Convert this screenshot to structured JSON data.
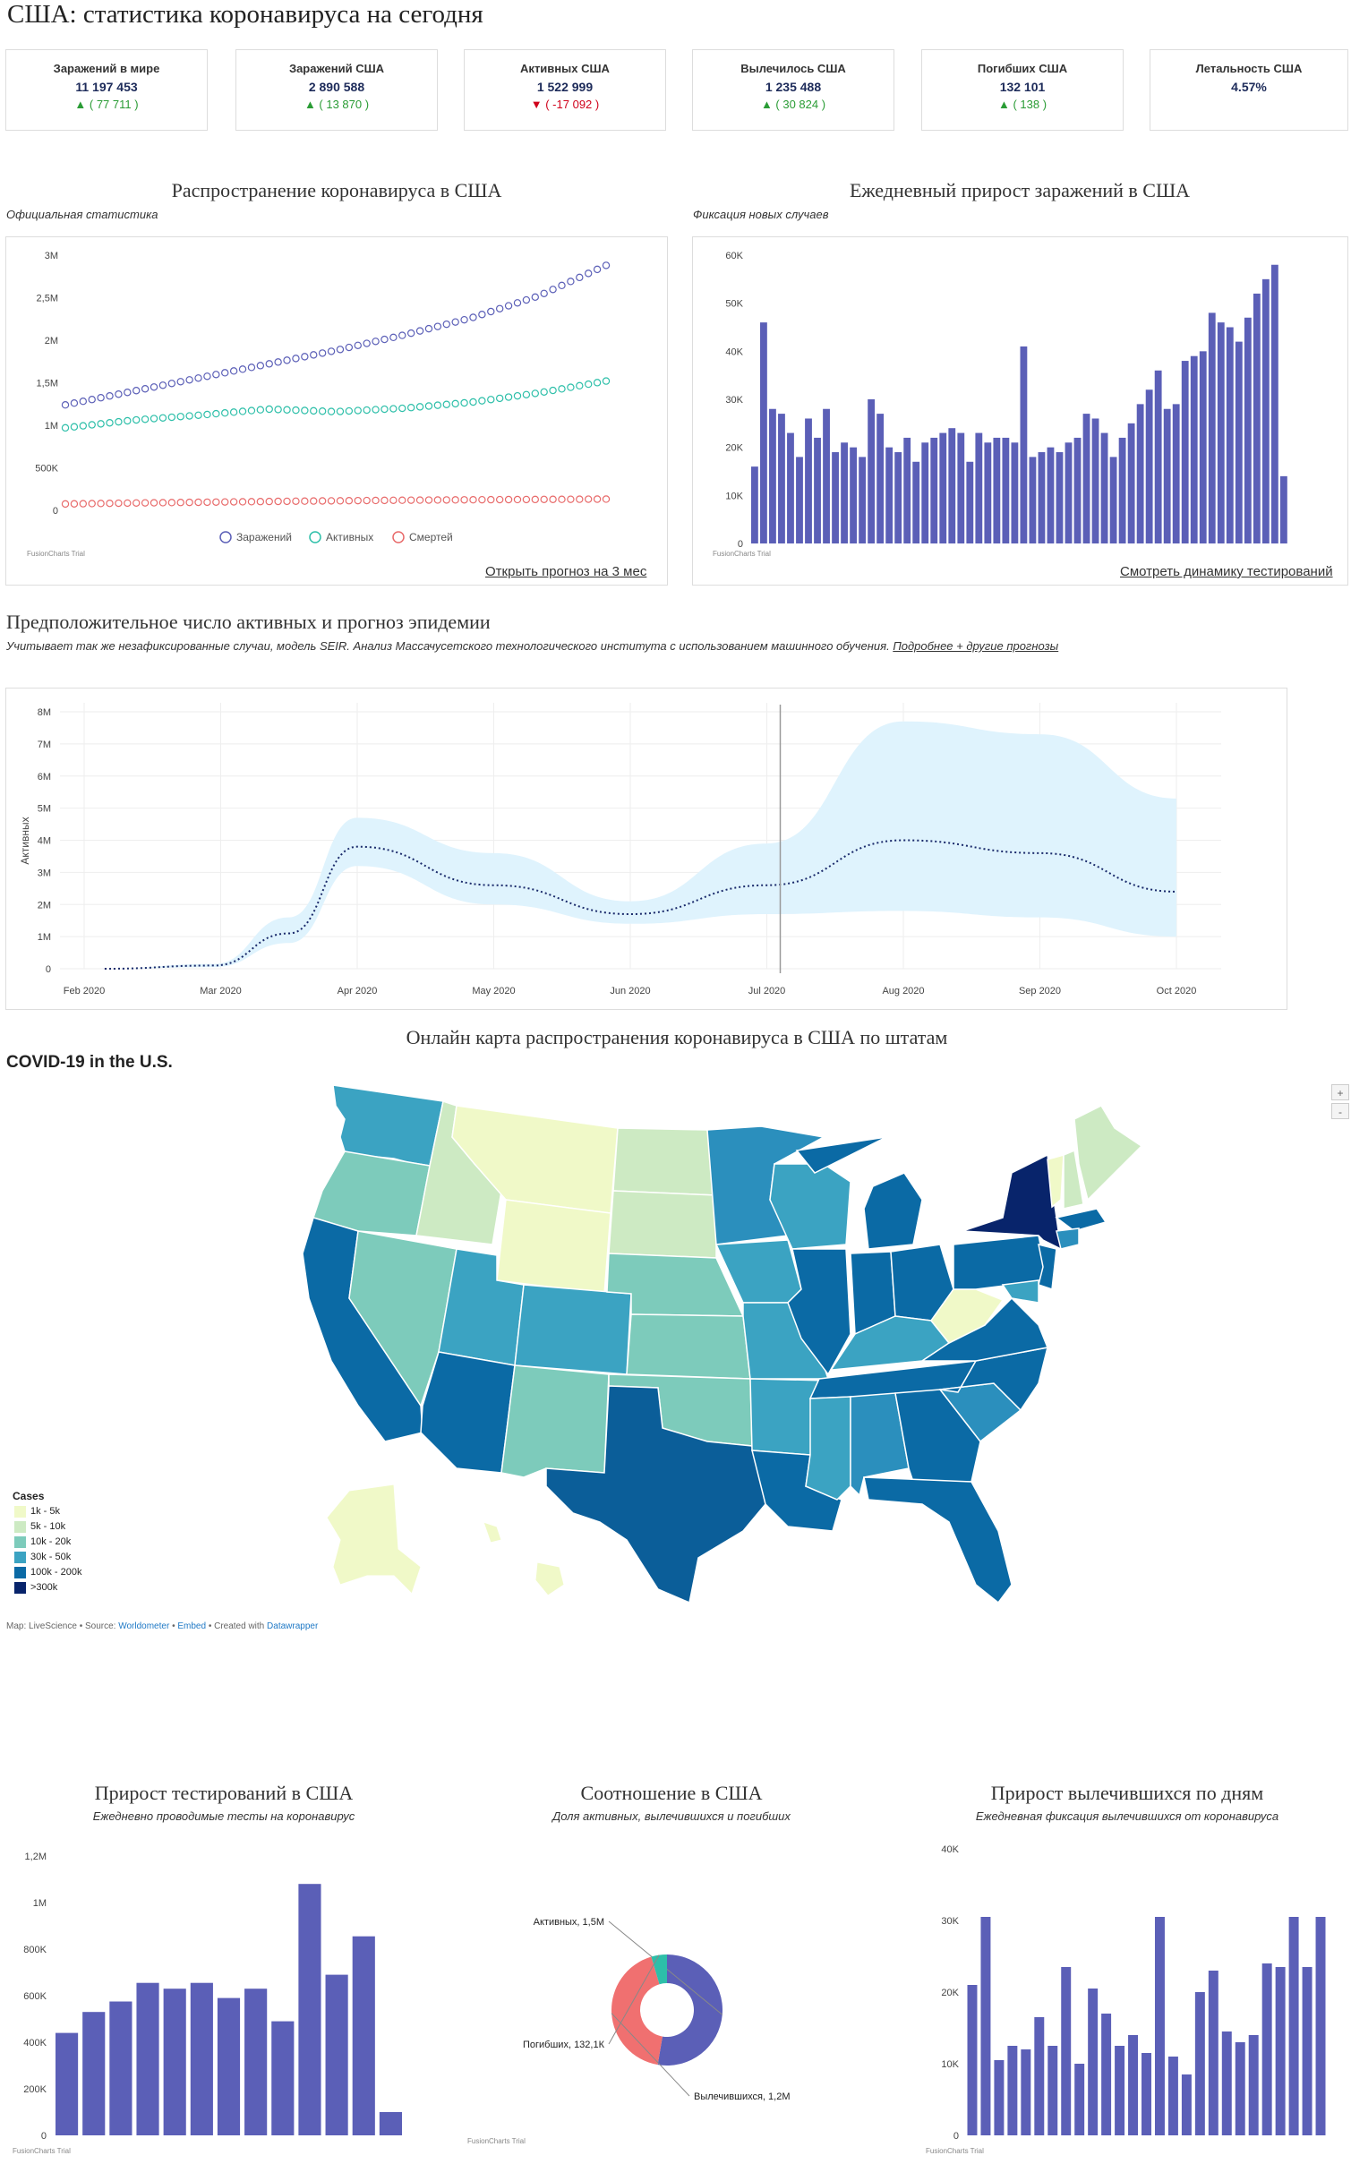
{
  "page_title": "США: статистика коронавируса на сегодня",
  "stats": [
    {
      "label": "Заражений в мире",
      "value": "11 197 453",
      "delta": "▲ ( 77 711 )",
      "dir": "up"
    },
    {
      "label": "Заражений США",
      "value": "2 890 588",
      "delta": "▲ ( 13 870 )",
      "dir": "up"
    },
    {
      "label": "Активных США",
      "value": "1 522 999",
      "delta": "▼ ( -17 092 )",
      "dir": "down"
    },
    {
      "label": "Вылечилось США",
      "value": "1 235 488",
      "delta": "▲ ( 30 824 )",
      "dir": "up"
    },
    {
      "label": "Погибших США",
      "value": "132 101",
      "delta": "▲ ( 138 )",
      "dir": "up"
    },
    {
      "label": "Летальность США",
      "value": "4.57%",
      "delta": "",
      "dir": "none"
    }
  ],
  "spread": {
    "title": "Распространение коронавируса в США",
    "subtitle": "Официальная статистика",
    "link": "Открыть прогноз на 3 мес",
    "trial": "FusionCharts Trial"
  },
  "daily": {
    "title": "Ежедневный прирост заражений в США",
    "subtitle": "Фиксация новых случаев",
    "link": "Смотреть динамику тестирований",
    "trial": "FusionCharts Trial"
  },
  "forecast": {
    "title": "Предположительное число активных и прогноз эпидемии",
    "subtitle": "Учитывает так же незафиксированные случаи, модель SEIR. Анализ Массачусетского технологического института с использованием машинного обучения.",
    "subtitle_link": "Подробнее + другие прогнозы"
  },
  "map": {
    "title": "Онлайн карта распространения коронавируса в США по штатам",
    "heading": "COVID-19 in the U.S.",
    "legend_title": "Cases",
    "legend": [
      {
        "label": "1k - 5k",
        "color": "#f0f9c8"
      },
      {
        "label": "5k - 10k",
        "color": "#cdeac3"
      },
      {
        "label": "10k - 20k",
        "color": "#7dcbbb"
      },
      {
        "label": "30k - 50k",
        "color": "#3ba3c2"
      },
      {
        "label": "100k - 200k",
        "color": "#0b6aa5"
      },
      {
        "label": ">300k",
        "color": "#08246b"
      }
    ],
    "credit_prefix": "Map: LiveScience • Source: ",
    "credit_source": "Worldometer",
    "credit_sep": " • ",
    "credit_embed": "Embed",
    "credit_created": " • Created with ",
    "credit_dw": "Datawrapper",
    "zoom_in": "+",
    "zoom_out": "-"
  },
  "tests": {
    "title": "Прирост тестирований в США",
    "subtitle": "Ежедневно проводимые тесты на коронавирус",
    "trial": "FusionCharts Trial"
  },
  "ratio": {
    "title": "Соотношение в США",
    "subtitle": "Доля активных, вылечившихся и погибших",
    "trial": "FusionCharts Trial"
  },
  "recovered": {
    "title": "Прирост вылечившихся по дням",
    "subtitle": "Ежедневная фиксация вылечившихся от коронавируса",
    "trial": "FusionCharts Trial"
  },
  "chart_data": [
    {
      "id": "spread",
      "type": "line",
      "ylim": [
        0,
        3000000
      ],
      "yticks": [
        {
          "v": 0,
          "label": "0"
        },
        {
          "v": 500000,
          "label": "500K"
        },
        {
          "v": 1000000,
          "label": "1M"
        },
        {
          "v": 1500000,
          "label": "1,5M"
        },
        {
          "v": 2000000,
          "label": "2M"
        },
        {
          "v": 2500000,
          "label": "2,5M"
        },
        {
          "v": 3000000,
          "label": "3M"
        }
      ],
      "legend": "bottom",
      "series": [
        {
          "name": "Заражений",
          "color": "#5b5fb7",
          "anchors": [
            1240000,
            1400000,
            1560000,
            1720000,
            1880000,
            2060000,
            2260000,
            2520000,
            2880000
          ]
        },
        {
          "name": "Активных",
          "color": "#2dbfa9",
          "anchors": [
            970000,
            1060000,
            1120000,
            1190000,
            1160000,
            1200000,
            1270000,
            1380000,
            1520000
          ]
        },
        {
          "name": "Смертей",
          "color": "#e86a6a",
          "anchors": [
            75000,
            86000,
            95000,
            104000,
            112000,
            119000,
            124000,
            128000,
            132000
          ]
        }
      ]
    },
    {
      "id": "daily",
      "type": "bar",
      "ylim": [
        0,
        60000
      ],
      "yticks": [
        {
          "v": 0,
          "label": "0"
        },
        {
          "v": 10000,
          "label": "10K"
        },
        {
          "v": 20000,
          "label": "20K"
        },
        {
          "v": 30000,
          "label": "30K"
        },
        {
          "v": 40000,
          "label": "40K"
        },
        {
          "v": 50000,
          "label": "50K"
        },
        {
          "v": 60000,
          "label": "60K"
        }
      ],
      "values": [
        16000,
        46000,
        28000,
        27000,
        23000,
        18000,
        26000,
        22000,
        28000,
        19000,
        21000,
        20000,
        18000,
        30000,
        27000,
        20000,
        19000,
        22000,
        17000,
        21000,
        22000,
        23000,
        24000,
        23000,
        17000,
        23000,
        21000,
        22000,
        22000,
        21000,
        41000,
        18000,
        19000,
        20000,
        19000,
        21000,
        22000,
        27000,
        26000,
        23000,
        18000,
        22000,
        25000,
        29000,
        32000,
        36000,
        28000,
        29000,
        38000,
        39000,
        40000,
        48000,
        46000,
        45000,
        42000,
        47000,
        52000,
        55000,
        58000,
        14000
      ],
      "color": "#5b5fb7"
    },
    {
      "id": "forecast",
      "type": "area",
      "ylabel": "Активных",
      "ylim": [
        0,
        8000000
      ],
      "yticks": [
        {
          "v": 0,
          "label": "0"
        },
        {
          "v": 1000000,
          "label": "1M"
        },
        {
          "v": 2000000,
          "label": "2M"
        },
        {
          "v": 3000000,
          "label": "3M"
        },
        {
          "v": 4000000,
          "label": "4M"
        },
        {
          "v": 5000000,
          "label": "5M"
        },
        {
          "v": 6000000,
          "label": "6M"
        },
        {
          "v": 7000000,
          "label": "7M"
        },
        {
          "v": 8000000,
          "label": "8M"
        }
      ],
      "xticks": [
        "Feb 2020",
        "Mar 2020",
        "Apr 2020",
        "May 2020",
        "Jun 2020",
        "Jul 2020",
        "Aug 2020",
        "Sep 2020",
        "Oct 2020"
      ],
      "today": "Jul 2020",
      "x": [
        "Feb 2020",
        "Mar 2020",
        "Mar 2020",
        "Apr 2020",
        "May 2020",
        "Jun 2020",
        "Jul 2020",
        "Aug 2020",
        "Sep 2020",
        "Oct 2020"
      ],
      "t": [
        0.15,
        0.95,
        1.5,
        2.0,
        3.0,
        4.0,
        5.0,
        6.0,
        7.0,
        8.0
      ],
      "mean": [
        0,
        100000,
        1100000,
        3800000,
        2600000,
        1700000,
        2600000,
        4000000,
        3600000,
        2400000
      ],
      "upper": [
        0,
        150000,
        1600000,
        4700000,
        3600000,
        2100000,
        3900000,
        7700000,
        7300000,
        5300000
      ],
      "lower": [
        0,
        50000,
        800000,
        3200000,
        2000000,
        1400000,
        1700000,
        1800000,
        1600000,
        1000000
      ]
    },
    {
      "id": "tests",
      "type": "bar",
      "ylim": [
        0,
        1200000
      ],
      "yticks": [
        {
          "v": 0,
          "label": "0"
        },
        {
          "v": 200000,
          "label": "200K"
        },
        {
          "v": 400000,
          "label": "400K"
        },
        {
          "v": 600000,
          "label": "600K"
        },
        {
          "v": 800000,
          "label": "800K"
        },
        {
          "v": 1000000,
          "label": "1M"
        },
        {
          "v": 1200000,
          "label": "1,2M"
        }
      ],
      "values": [
        440000,
        530000,
        575000,
        655000,
        630000,
        655000,
        590000,
        630000,
        490000,
        1080000,
        690000,
        855000,
        100000
      ],
      "color": "#5b5fb7"
    },
    {
      "id": "ratio",
      "type": "pie",
      "donut": true,
      "slices": [
        {
          "label": "Активных, 1,5М",
          "value": 1522999,
          "color": "#5b5fb7"
        },
        {
          "label": "Вылечившихся, 1,2М",
          "value": 1235488,
          "color": "#f07070"
        },
        {
          "label": "Погибших, 132,1К",
          "value": 132101,
          "color": "#2dbfa9"
        }
      ]
    },
    {
      "id": "recovered",
      "type": "bar",
      "ylim": [
        0,
        40000
      ],
      "yticks": [
        {
          "v": 0,
          "label": "0"
        },
        {
          "v": 10000,
          "label": "10K"
        },
        {
          "v": 20000,
          "label": "20K"
        },
        {
          "v": 30000,
          "label": "30K"
        },
        {
          "v": 40000,
          "label": "40K"
        }
      ],
      "values": [
        21000,
        30500,
        10500,
        12500,
        12000,
        16500,
        12500,
        23500,
        10000,
        20500,
        17000,
        12500,
        14000,
        11500,
        30500,
        11000,
        8500,
        20000,
        23000,
        14500,
        13000,
        14000,
        24000,
        23500,
        30500,
        23500,
        30500
      ],
      "color": "#5b5fb7"
    }
  ]
}
